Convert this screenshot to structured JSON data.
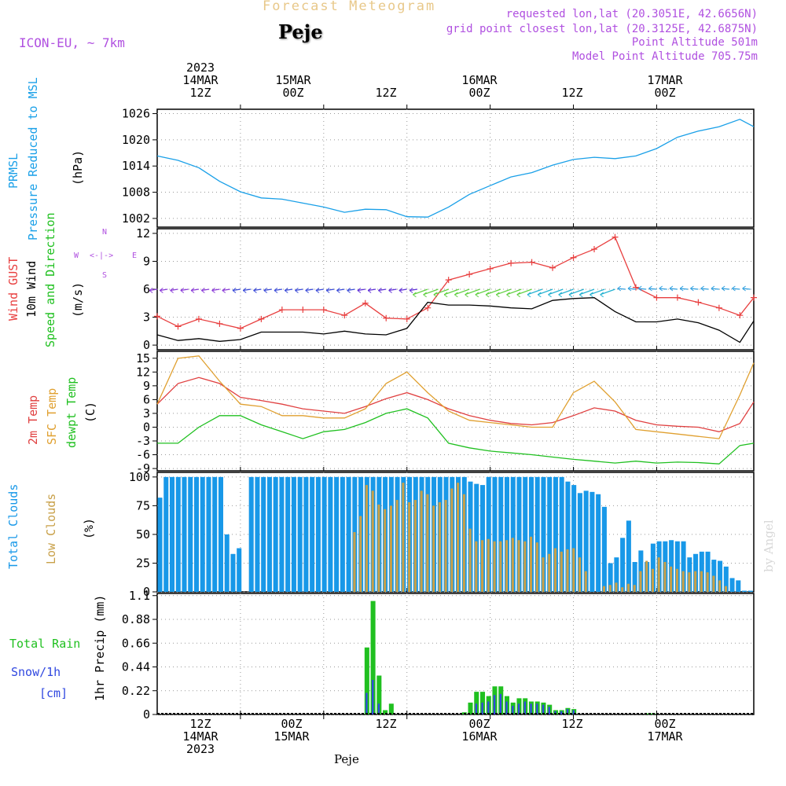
{
  "header": {
    "title": "Forecast Meteogram",
    "station": "Peje",
    "model": "ICON-EU, ~ 7km",
    "requested": "requested lon,lat (20.3051E, 42.6656N)",
    "gridpoint": "grid point closest lon,lat (20.3125E, 42.6875N)",
    "point_alt": "Point Altitude 501m",
    "model_alt": "Model Point Altitude 705.75m"
  },
  "time_axis": {
    "top": [
      {
        "lines": [
          "2023",
          "14MAR",
          "12Z"
        ]
      },
      {
        "lines": [
          "15MAR",
          "00Z"
        ]
      },
      {
        "lines": [
          "12Z"
        ]
      },
      {
        "lines": [
          "16MAR",
          "00Z"
        ]
      },
      {
        "lines": [
          "12Z"
        ]
      },
      {
        "lines": [
          "17MAR",
          "00Z"
        ]
      }
    ],
    "bottom": [
      {
        "lines": [
          "12Z",
          "14MAR",
          "2023"
        ]
      },
      {
        "lines": [
          "00Z",
          "15MAR"
        ]
      },
      {
        "lines": [
          "12Z"
        ]
      },
      {
        "lines": [
          "00Z",
          "16MAR"
        ]
      },
      {
        "lines": [
          "12Z"
        ]
      },
      {
        "lines": [
          "00Z",
          "17MAR"
        ]
      }
    ],
    "hours": [
      12,
      24,
      36,
      48,
      60,
      72
    ],
    "footer": "Peje"
  },
  "panel_labels": {
    "p1": [
      "PRMSL",
      "Pressure Reduced to MSL",
      "(hPa)"
    ],
    "p2": [
      "Wind GUST",
      "10m Wind",
      "Speed and Direction",
      "(m/s)"
    ],
    "p3": [
      "2m Temp",
      "SFC Temp",
      "dewpt Temp",
      "(C)"
    ],
    "p4": [
      "Total Clouds",
      "Low Clouds",
      "(%)"
    ],
    "p5": [
      "Total  Rain",
      "Snow/1h",
      "[cm]",
      "1hr Precip (mm)"
    ],
    "compass": [
      "N",
      "S",
      "W",
      "E"
    ],
    "watermark": "by Angel"
  },
  "colors": {
    "pressure": "#1aa0e8",
    "gust": "#e84040",
    "wind": "#000000",
    "temp2m": "#e04040",
    "sfc": "#e0a030",
    "dewpt": "#20c020",
    "total_clouds": "#1898e8",
    "low_clouds": "#c8a048",
    "rain": "#20c020",
    "snow": "#3048e0"
  },
  "chart_data": [
    {
      "type": "line",
      "name": "PRMSL",
      "ylabel": "(hPa)",
      "yticks": [
        1002,
        1008,
        1014,
        1020,
        1026
      ],
      "ylim": [
        1000,
        1027
      ],
      "grid": true,
      "x_hours": [
        0,
        3,
        6,
        9,
        12,
        15,
        18,
        21,
        24,
        27,
        30,
        33,
        36,
        39,
        42,
        45,
        48,
        51,
        54,
        57,
        60,
        63,
        66,
        69,
        72,
        75,
        78,
        81,
        84,
        86
      ],
      "series": [
        {
          "name": "PRMSL",
          "values": [
            1016.3,
            1015.3,
            1013.6,
            1010.5,
            1008.1,
            1006.7,
            1006.4,
            1005.5,
            1004.6,
            1003.4,
            1004.1,
            1004.0,
            1002.4,
            1002.3,
            1004.6,
            1007.5,
            1009.5,
            1011.5,
            1012.5,
            1014.2,
            1015.5,
            1016.0,
            1015.7,
            1016.3,
            1018.0,
            1020.6,
            1022.0,
            1023.0,
            1024.7,
            1023.0
          ]
        }
      ]
    },
    {
      "type": "line",
      "name": "Wind",
      "ylabel": "(m/s)",
      "yticks": [
        0,
        3,
        6,
        9,
        12
      ],
      "ylim": [
        -0.5,
        12.5
      ],
      "grid": true,
      "x_hours": [
        0,
        3,
        6,
        9,
        12,
        15,
        18,
        21,
        24,
        27,
        30,
        33,
        36,
        39,
        42,
        45,
        48,
        51,
        54,
        57,
        60,
        63,
        66,
        69,
        72,
        75,
        78,
        81,
        84,
        86
      ],
      "series": [
        {
          "name": "Wind GUST",
          "values": [
            3.1,
            2.0,
            2.8,
            2.3,
            1.8,
            2.8,
            3.8,
            3.8,
            3.8,
            3.2,
            4.5,
            2.9,
            2.8,
            4.0,
            7.0,
            7.6,
            8.2,
            8.8,
            8.9,
            8.3,
            9.4,
            10.3,
            11.6,
            6.2,
            5.1,
            5.1,
            4.6,
            4.0,
            3.2,
            5.1
          ]
        },
        {
          "name": "10m Wind",
          "values": [
            1.1,
            0.5,
            0.7,
            0.4,
            0.6,
            1.4,
            1.4,
            1.4,
            1.2,
            1.5,
            1.2,
            1.1,
            1.8,
            4.6,
            4.3,
            4.3,
            4.2,
            4.0,
            3.9,
            4.8,
            5.0,
            5.1,
            3.6,
            2.5,
            2.5,
            2.8,
            2.4,
            1.6,
            0.3,
            2.6
          ]
        }
      ]
    },
    {
      "type": "line",
      "name": "Temperature",
      "ylabel": "(C)",
      "yticks": [
        -9,
        -6,
        -3,
        0,
        3,
        6,
        9,
        12,
        15
      ],
      "ylim": [
        -9.5,
        16.5
      ],
      "grid": true,
      "x_hours": [
        0,
        3,
        6,
        9,
        12,
        15,
        18,
        21,
        24,
        27,
        30,
        33,
        36,
        39,
        42,
        45,
        48,
        51,
        54,
        57,
        60,
        63,
        66,
        69,
        72,
        75,
        78,
        81,
        84,
        86
      ],
      "series": [
        {
          "name": "2m Temp",
          "values": [
            5.0,
            9.5,
            10.8,
            9.5,
            6.5,
            5.8,
            5.0,
            4.0,
            3.5,
            3.0,
            4.5,
            6.2,
            7.5,
            6.0,
            4.0,
            2.5,
            1.5,
            0.8,
            0.5,
            1.0,
            2.5,
            4.2,
            3.5,
            1.5,
            0.5,
            0.2,
            0.0,
            -1.0,
            0.8,
            5.5
          ]
        },
        {
          "name": "SFC Temp",
          "values": [
            5.0,
            15.0,
            15.5,
            10.0,
            5.0,
            4.5,
            2.5,
            2.5,
            2.0,
            2.0,
            4.0,
            9.5,
            12.0,
            7.5,
            3.5,
            1.5,
            1.0,
            0.5,
            0.0,
            0.0,
            7.5,
            10.0,
            5.5,
            -0.5,
            -1.0,
            -1.5,
            -2.0,
            -2.5,
            7.0,
            14.0
          ]
        },
        {
          "name": "dewpt Temp",
          "values": [
            -3.5,
            -3.5,
            0.0,
            2.5,
            2.5,
            0.5,
            -1.0,
            -2.5,
            -1.0,
            -0.5,
            1.0,
            3.0,
            4.0,
            2.0,
            -3.5,
            -4.5,
            -5.2,
            -5.6,
            -6.0,
            -6.5,
            -7.0,
            -7.4,
            -7.8,
            -7.4,
            -7.8,
            -7.6,
            -7.7,
            -8.0,
            -4.0,
            -3.5
          ]
        }
      ]
    },
    {
      "type": "bar",
      "name": "Clouds",
      "ylabel": "(%)",
      "yticks": [
        0,
        25,
        50,
        75,
        100
      ],
      "ylim": [
        0,
        104
      ],
      "grid": true,
      "series": [
        {
          "name": "Total Clouds",
          "values": [
            82,
            100,
            100,
            100,
            100,
            100,
            100,
            100,
            100,
            100,
            100,
            50,
            33,
            38,
            0,
            100,
            100,
            100,
            100,
            100,
            100,
            100,
            100,
            100,
            100,
            100,
            100,
            100,
            100,
            100,
            100,
            100,
            100,
            100,
            100,
            100,
            100,
            100,
            100,
            100,
            100,
            100,
            100,
            100,
            100,
            100,
            100,
            100,
            100,
            100,
            100,
            96,
            94,
            93,
            100,
            100,
            100,
            100,
            100,
            100,
            100,
            100,
            100,
            100,
            100,
            100,
            100,
            96,
            93,
            86,
            88,
            87,
            85,
            74,
            25,
            30,
            47,
            62,
            26,
            36,
            26,
            42,
            44,
            44,
            45,
            44,
            44,
            30,
            33,
            35,
            35,
            28,
            27,
            22,
            12,
            10,
            1,
            1
          ]
        },
        {
          "name": "Low Clouds",
          "values": [
            0,
            0,
            0,
            0,
            0,
            0,
            0,
            0,
            0,
            0,
            0,
            0,
            0,
            0,
            0,
            0,
            0,
            0,
            0,
            0,
            0,
            0,
            0,
            0,
            0,
            0,
            0,
            0,
            0,
            0,
            0,
            0,
            52,
            66,
            93,
            88,
            76,
            72,
            75,
            80,
            95,
            78,
            80,
            88,
            85,
            75,
            78,
            80,
            90,
            95,
            85,
            55,
            44,
            45,
            46,
            44,
            44,
            45,
            47,
            45,
            44,
            48,
            43,
            30,
            33,
            38,
            35,
            37,
            38,
            30,
            18,
            0,
            0,
            5,
            6,
            8,
            4,
            7,
            6,
            18,
            27,
            20,
            30,
            26,
            22,
            20,
            18,
            17,
            18,
            18,
            17,
            14,
            10,
            5,
            0,
            0,
            0,
            0
          ]
        }
      ]
    },
    {
      "type": "bar",
      "name": "Precipitation",
      "ylabel": "1hr Precip (mm)",
      "yticks": [
        0,
        0.22,
        0.44,
        0.66,
        0.88,
        1.1
      ],
      "ylim": [
        0,
        1.12
      ],
      "grid": true,
      "series": [
        {
          "name": "Total Rain",
          "values": [
            0,
            0,
            0,
            0,
            0,
            0,
            0,
            0,
            0,
            0,
            0,
            0,
            0,
            0,
            0,
            0,
            0,
            0,
            0,
            0,
            0,
            0,
            0,
            0,
            0,
            0,
            0,
            0,
            0,
            0,
            0,
            0,
            0,
            0,
            0.62,
            1.05,
            0.36,
            0.04,
            0.1,
            0,
            0,
            0,
            0,
            0,
            0,
            0,
            0,
            0,
            0,
            0,
            0.02,
            0.11,
            0.21,
            0.21,
            0.17,
            0.26,
            0.26,
            0.17,
            0.11,
            0.15,
            0.15,
            0.12,
            0.12,
            0.11,
            0.09,
            0.04,
            0.04,
            0.06,
            0.05,
            0,
            0,
            0,
            0,
            0,
            0,
            0,
            0,
            0,
            0,
            0,
            0.01,
            0.01,
            0,
            0,
            0,
            0,
            0,
            0,
            0,
            0,
            0,
            0,
            0,
            0,
            0,
            0,
            0,
            0
          ]
        },
        {
          "name": "Snow/1h",
          "values": [
            0,
            0,
            0,
            0,
            0,
            0,
            0,
            0,
            0,
            0,
            0,
            0,
            0,
            0,
            0,
            0,
            0,
            0,
            0,
            0,
            0,
            0,
            0,
            0,
            0,
            0,
            0,
            0,
            0,
            0,
            0,
            0,
            0,
            0,
            0.2,
            0.32,
            0.1,
            0,
            0,
            0,
            0,
            0,
            0,
            0,
            0,
            0,
            0,
            0,
            0,
            0,
            0,
            0,
            0.1,
            0.11,
            0.12,
            0.18,
            0.19,
            0.12,
            0.08,
            0.1,
            0.12,
            0.1,
            0.1,
            0.09,
            0.07,
            0.03,
            0.03,
            0.05,
            0.04,
            0,
            0,
            0,
            0,
            0,
            0,
            0,
            0,
            0,
            0,
            0,
            0,
            0,
            0,
            0,
            0,
            0,
            0,
            0,
            0,
            0,
            0,
            0,
            0,
            0,
            0,
            0,
            0
          ]
        }
      ]
    }
  ]
}
